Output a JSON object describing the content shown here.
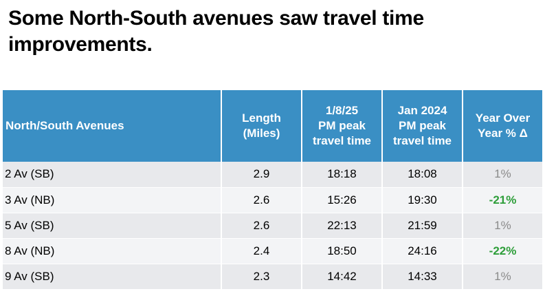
{
  "title": "Some North-South avenues saw travel time improvements.",
  "colors": {
    "header_bg": "#3a8fc4",
    "improved": "#2e9e3a",
    "neutral": "#8a8a8a"
  },
  "table": {
    "headers": [
      [
        "North/South Avenues"
      ],
      [
        "Length",
        "(Miles)"
      ],
      [
        "1/8/25",
        "PM peak",
        "travel time"
      ],
      [
        "Jan 2024",
        "PM peak",
        "travel time"
      ],
      [
        "Year Over",
        "Year % Δ"
      ]
    ],
    "rows": [
      {
        "avenue": "2 Av (SB)",
        "length": "2.9",
        "current": "18:18",
        "prior": "18:08",
        "change": "1%",
        "status": "neutral"
      },
      {
        "avenue": "3 Av (NB)",
        "length": "2.6",
        "current": "15:26",
        "prior": "19:30",
        "change": "-21%",
        "status": "improved"
      },
      {
        "avenue": "5 Av (SB)",
        "length": "2.6",
        "current": "22:13",
        "prior": "21:59",
        "change": "1%",
        "status": "neutral"
      },
      {
        "avenue": "8 Av (NB)",
        "length": "2.4",
        "current": "18:50",
        "prior": "24:16",
        "change": "-22%",
        "status": "improved"
      },
      {
        "avenue": "9 Av (SB)",
        "length": "2.3",
        "current": "14:42",
        "prior": "14:33",
        "change": "1%",
        "status": "neutral"
      }
    ]
  }
}
